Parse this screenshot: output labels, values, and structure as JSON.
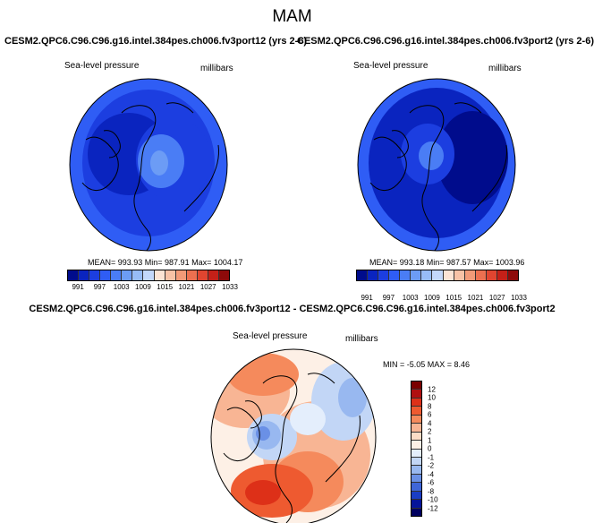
{
  "season": "MAM",
  "panels": [
    {
      "case": "CESM2.QPC6.C96.C96.g16.intel.384pes.ch006.fv3port12 (yrs 2-6)",
      "variable": "Sea-level pressure",
      "units": "millibars",
      "stats": "MEAN= 993.93  Min= 987.91  Max= 1004.17"
    },
    {
      "case": "CESM2.QPC6.C96.C96.g16.intel.384pes.ch006.fv3port2 (yrs 2-6)",
      "variable": "Sea-level pressure",
      "units": "millibars",
      "stats": "MEAN= 993.18  Min= 987.57  Max= 1003.96"
    }
  ],
  "abs_colorbar": {
    "ticks": [
      "991",
      "997",
      "1003",
      "1009",
      "1015",
      "1021",
      "1027",
      "1033"
    ],
    "colors": [
      "#000c8c",
      "#0a24bf",
      "#1c3ee0",
      "#2f5df5",
      "#4a7df5",
      "#6c9cf5",
      "#97bcf7",
      "#c3d8fa",
      "#fce4d4",
      "#f7c2a6",
      "#f29a78",
      "#ec7050",
      "#e04530",
      "#c42018",
      "#8e0a0a"
    ]
  },
  "difference": {
    "title": "CESM2.QPC6.C96.C96.g16.intel.384pes.ch006.fv3port12 - CESM2.QPC6.C96.C96.g16.intel.384pes.ch006.fv3port2",
    "variable": "Sea-level pressure",
    "units": "millibars",
    "stats": "MIN =  -5.05  MAX =   8.46"
  },
  "diff_colorbar": {
    "ticks": [
      "12",
      "10",
      "8",
      "6",
      "4",
      "2",
      "1",
      "0",
      "-1",
      "-2",
      "-4",
      "-6",
      "-8",
      "-10",
      "-12"
    ],
    "colors": [
      "#7a0000",
      "#b01010",
      "#dd3018",
      "#ee5a30",
      "#f58a5c",
      "#f8b594",
      "#fcdcc6",
      "#fdf0e6",
      "#e4eefc",
      "#c2d6f6",
      "#98b8f0",
      "#6a90e6",
      "#3f66d8",
      "#1a3dc4",
      "#06149a",
      "#000060"
    ]
  }
}
